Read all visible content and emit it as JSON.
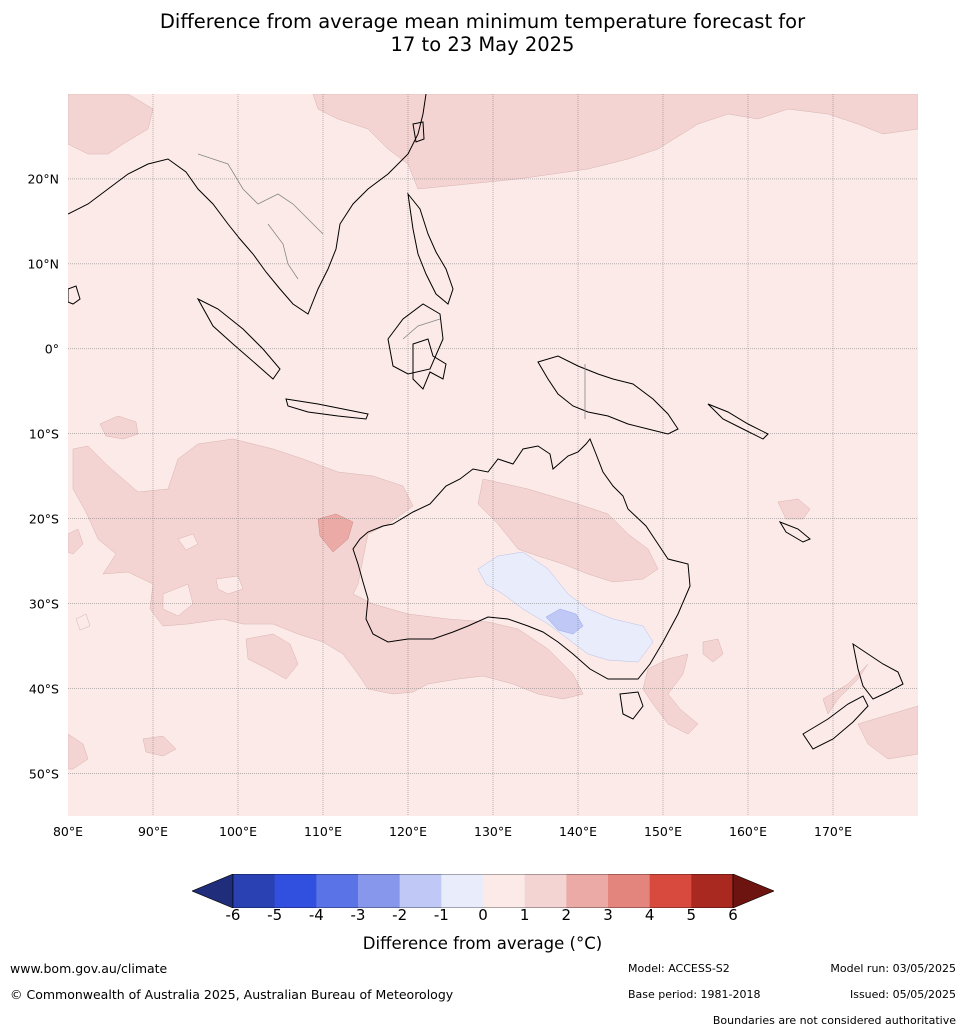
{
  "title": {
    "line1": "Difference from average mean minimum temperature forecast for",
    "line2": "17 to 23 May 2025"
  },
  "map": {
    "lat_labels": [
      "20°N",
      "10°N",
      "0°",
      "10°S",
      "20°S",
      "30°S",
      "40°S",
      "50°S"
    ],
    "lon_labels": [
      "80°E",
      "90°E",
      "100°E",
      "110°E",
      "120°E",
      "130°E",
      "140°E",
      "150°E",
      "160°E",
      "170°E"
    ],
    "extent": {
      "lon_min": 80,
      "lon_max": 180,
      "lat_min": -55,
      "lat_max": 30
    },
    "background_anomaly_band": "0 to 1",
    "colors": {
      "band_0_1": "#fbeae8",
      "band_1_2": "#f4d4d2",
      "band_2_3": "#ebaaa6",
      "band_m1_0": "#e8ecfb",
      "band_m2_m1": "#c0c8f5",
      "land_outline": "#000000",
      "grid": "#777777"
    }
  },
  "colorbar": {
    "ticks": [
      "-6",
      "-5",
      "-4",
      "-3",
      "-2",
      "-1",
      "0",
      "1",
      "2",
      "3",
      "4",
      "5",
      "6"
    ],
    "colors": [
      "#1f2d7a",
      "#2a41b3",
      "#3150e0",
      "#5a73e6",
      "#8798ec",
      "#c0c8f5",
      "#e8ecfb",
      "#fbeae8",
      "#f4d4d2",
      "#ebaaa6",
      "#e3847d",
      "#d94a3e",
      "#a9281f",
      "#6e1410"
    ],
    "label": "Difference from average (°C)"
  },
  "footer": {
    "website": "www.bom.gov.au/climate",
    "copyright": "© Commonwealth of Australia 2025, Australian Bureau of Meteorology",
    "model": "Model: ACCESS-S2",
    "base_period": "Base period: 1981-2018",
    "model_run": "Model run: 03/05/2025",
    "issued": "Issued: 05/05/2025",
    "disclaimer": "Boundaries are not considered authoritative"
  }
}
